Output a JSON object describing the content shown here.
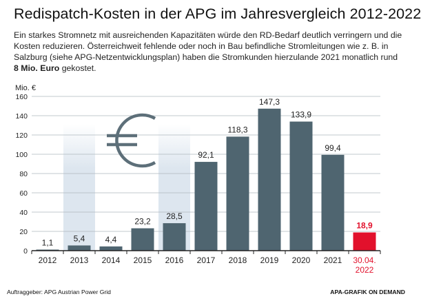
{
  "title": "Redispatch-Kosten in der APG im Jahresvergleich 2012-2022",
  "subtitle": {
    "text_before": "Ein starkes Stromnetz mit ausreichenden Kapazitäten würde den RD-Bedarf deutlich verringern und die Kosten reduzieren. Österreichweit fehlende oder noch in Bau befindliche Stromleitungen wie z. B. in Salzburg (siehe APG-Netzentwicklungsplan) haben die Stromkunden hierzulande 2021 monatlich rund ",
    "bold": "8 Mio. Euro",
    "text_after": " gekostet."
  },
  "footer": {
    "client": "Auftraggeber: APG Austrian Power Grid",
    "credit": "APA-GRAFIK ON DEMAND"
  },
  "colors": {
    "bar": "#4f6570",
    "highlight": "#e2112c",
    "band": "#dde6ef",
    "grid": "#aeb7bd",
    "euro_icon": "#5d6f79"
  },
  "icon": "euro-icon",
  "chart_data": {
    "type": "bar",
    "title": "Redispatch-Kosten in der APG im Jahresvergleich 2012-2022",
    "ylabel": "Mio. €",
    "xlabel": "",
    "ylim": [
      0,
      160
    ],
    "yticks": [
      0,
      20,
      40,
      60,
      80,
      100,
      120,
      140,
      160
    ],
    "grid": true,
    "categories": [
      "2012",
      "2013",
      "2014",
      "2015",
      "2016",
      "2017",
      "2018",
      "2019",
      "2020",
      "2021",
      "30.04.\n2022"
    ],
    "values": [
      1.1,
      5.4,
      4.4,
      23.2,
      28.5,
      92.1,
      118.3,
      147.3,
      133.9,
      99.4,
      18.9
    ],
    "value_labels": [
      "1,1",
      "5,4",
      "4,4",
      "23,2",
      "28,5",
      "92,1",
      "118,3",
      "147,3",
      "133,9",
      "99,4",
      "18,9"
    ],
    "highlight_index": 10,
    "shaded_background_indices": [
      1,
      4
    ]
  }
}
